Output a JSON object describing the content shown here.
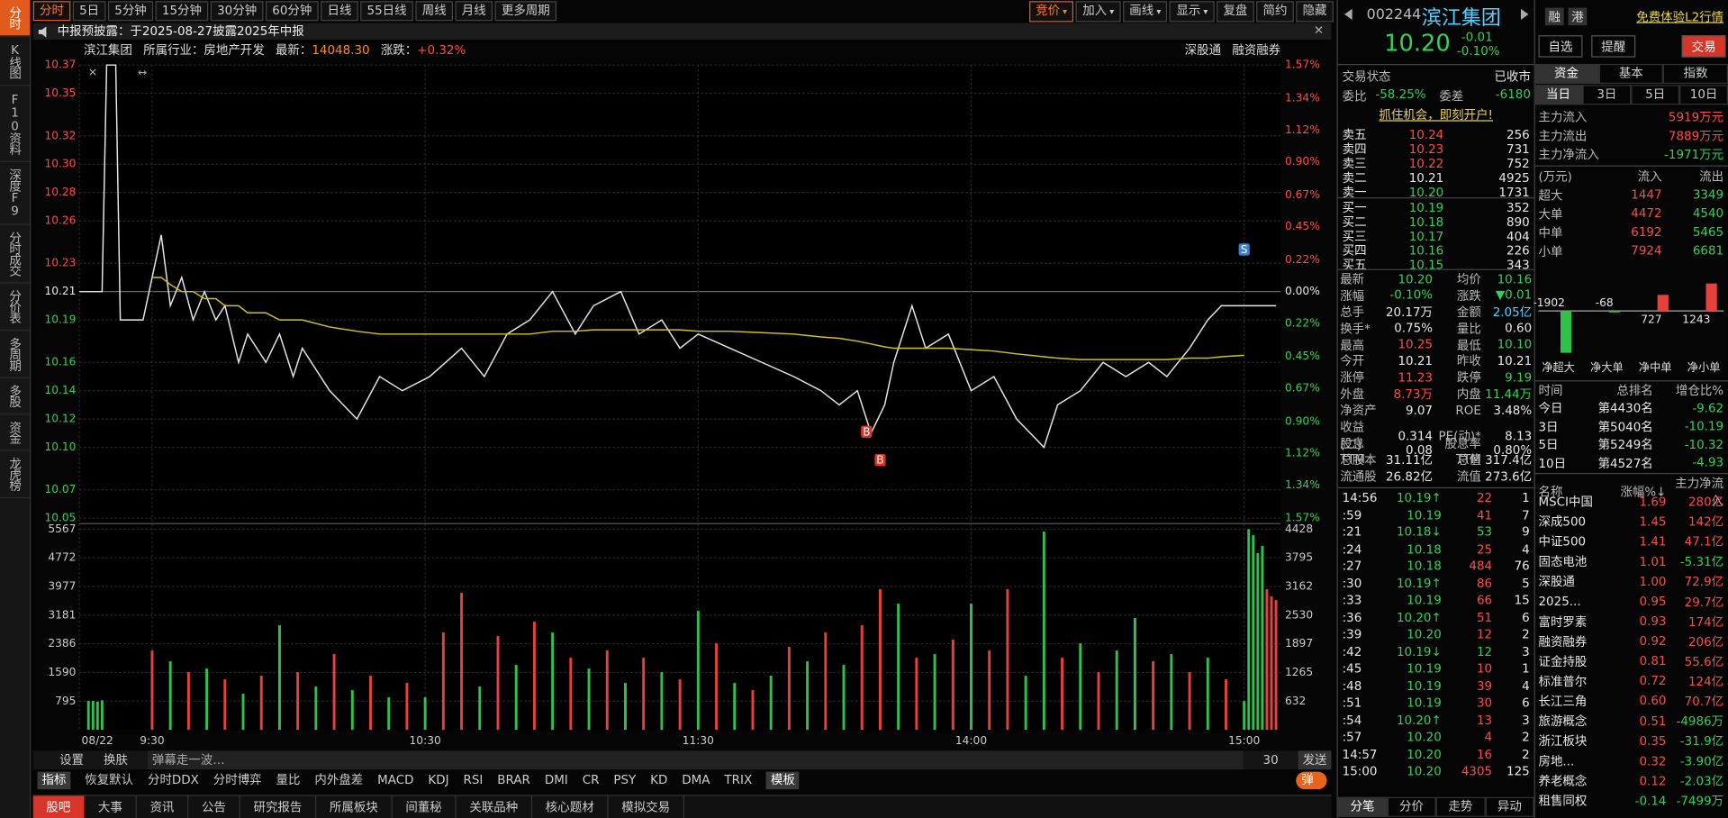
{
  "nav": [
    "分时",
    "K线图",
    "F10资料",
    "深度F9",
    "分时成交",
    "分价表",
    "多周期",
    "多股",
    "资金",
    "龙虎榜"
  ],
  "toolbar": {
    "periods": [
      "分时",
      "5日",
      "5分钟",
      "15分钟",
      "30分钟",
      "60分钟",
      "日线",
      "55日线",
      "周线",
      "月线",
      "更多周期"
    ],
    "tools": [
      "竞价",
      "加入",
      "画线",
      "显示",
      "复盘",
      "简约",
      "隐藏"
    ]
  },
  "notice": "中报预披露：于2025-08-27披露2025年中报",
  "info": {
    "name": "滨江集团",
    "industry": "所属行业：房地产开发",
    "latest_label": "最新：",
    "latest": "14048.30",
    "change_label": "涨跌：",
    "change": "+0.32%",
    "links": [
      "深股通",
      "融资融券"
    ]
  },
  "bottom_bar": {
    "settings": "设置",
    "skin": "换肤",
    "danmu": "弹幕走一波…",
    "count": "30",
    "send": "发送"
  },
  "indicators": {
    "label": "指标",
    "items": [
      "恢复默认",
      "分时DDX",
      "分时博弈",
      "量比",
      "内外盘差",
      "MACD",
      "KDJ",
      "RSI",
      "BRAR",
      "DMI",
      "CR",
      "PSY",
      "KD",
      "DMA",
      "TRIX"
    ],
    "template": "模板",
    "toggle": "弹"
  },
  "bottom_tabs": [
    "股吧",
    "大事",
    "资讯",
    "公告",
    "研究报告",
    "所属板块",
    "间董秘",
    "关联品种",
    "核心题材",
    "模拟交易"
  ],
  "quote": {
    "code": "002244",
    "name": "滨江集团",
    "price": "10.20",
    "change": "-0.01",
    "pct": "-0.10%",
    "status_label": "交易状态",
    "status": "已收市",
    "wb_label": "委比",
    "wb": "-58.25%",
    "wc_label": "委差",
    "wc": "-6180",
    "promo": "抓住机会，即刻开户!"
  },
  "order_book": {
    "asks": [
      [
        "卖五",
        "10.24",
        "256"
      ],
      [
        "卖四",
        "10.23",
        "731"
      ],
      [
        "卖三",
        "10.22",
        "752"
      ],
      [
        "卖二",
        "10.21",
        "4925"
      ],
      [
        "卖一",
        "10.20",
        "1731"
      ]
    ],
    "bids": [
      [
        "买一",
        "10.19",
        "352"
      ],
      [
        "买二",
        "10.18",
        "890"
      ],
      [
        "买三",
        "10.17",
        "404"
      ],
      [
        "买四",
        "10.16",
        "226"
      ],
      [
        "买五",
        "10.15",
        "343"
      ]
    ]
  },
  "stats": [
    [
      "最新",
      "10.20",
      "均价",
      "10.16"
    ],
    [
      "涨幅",
      "-0.10%",
      "涨跌",
      "▼0.01"
    ],
    [
      "总手",
      "20.17万",
      "金额",
      "2.05亿"
    ],
    [
      "换手*",
      "0.75%",
      "量比",
      "0.60"
    ],
    [
      "最高",
      "10.25",
      "最低",
      "10.10"
    ],
    [
      "今开",
      "10.21",
      "昨收",
      "10.21"
    ],
    [
      "涨停",
      "11.23",
      "跌停",
      "9.19"
    ],
    [
      "外盘",
      "8.73万",
      "内盘",
      "11.44万"
    ],
    [
      "净资产",
      "9.07",
      "ROE",
      "3.48%"
    ],
    [
      "收益(二)",
      "0.314",
      "PE(动)*",
      "8.13"
    ],
    [
      "股息TTM",
      "0.08",
      "股息率TTM",
      "0.80%"
    ],
    [
      "总股本",
      "31.11亿",
      "总值",
      "317.4亿"
    ],
    [
      "流通股",
      "26.82亿",
      "流值",
      "273.6亿"
    ]
  ],
  "ticks": [
    [
      "14:56",
      "10.19↑",
      "22",
      "1"
    ],
    [
      ":59",
      "10.19",
      "41",
      "7"
    ],
    [
      ":21",
      "10.18↓",
      "53",
      "9"
    ],
    [
      ":24",
      "10.18",
      "25",
      "4"
    ],
    [
      ":27",
      "10.18",
      "484",
      "76"
    ],
    [
      ":30",
      "10.19↑",
      "86",
      "5"
    ],
    [
      ":33",
      "10.19",
      "66",
      "15"
    ],
    [
      ":36",
      "10.20↑",
      "51",
      "6"
    ],
    [
      ":39",
      "10.20",
      "12",
      "2"
    ],
    [
      ":42",
      "10.19↓",
      "12",
      "3"
    ],
    [
      ":45",
      "10.19",
      "10",
      "1"
    ],
    [
      ":48",
      "10.19",
      "39",
      "4"
    ],
    [
      ":51",
      "10.19",
      "30",
      "6"
    ],
    [
      ":54",
      "10.20↑",
      "13",
      "3"
    ],
    [
      ":57",
      "10.20",
      "4",
      "2"
    ],
    [
      "14:57",
      "10.20",
      "16",
      "2"
    ],
    [
      "15:00",
      "10.20",
      "4305",
      "125"
    ]
  ],
  "ticks_tabs": [
    "分笔",
    "分价",
    "走势",
    "异动"
  ],
  "side": {
    "badges": [
      "融",
      "港"
    ],
    "l2": "免费体验L2行情",
    "buttons": [
      "自选",
      "提醒",
      "交易"
    ],
    "tabs": [
      "资金",
      "基本",
      "指数"
    ],
    "periods": [
      "当日",
      "3日",
      "5日",
      "10日"
    ]
  },
  "main_flow": [
    [
      "主力流入",
      "5919万元"
    ],
    [
      "主力流出",
      "7889万元"
    ],
    [
      "主力净流入",
      "-1971万元"
    ]
  ],
  "flow_table": {
    "header": [
      "(万元)",
      "流入",
      "流出"
    ],
    "rows": [
      [
        "超大",
        "1447",
        "3349"
      ],
      [
        "大单",
        "4472",
        "4540"
      ],
      [
        "中单",
        "6192",
        "5465"
      ],
      [
        "小单",
        "7924",
        "6681"
      ]
    ]
  },
  "rank": {
    "header": [
      "时间",
      "总排名",
      "增仓比%"
    ],
    "rows": [
      [
        "今日",
        "第4430名",
        "-9.62"
      ],
      [
        "3日",
        "第5040名",
        "-10.19"
      ],
      [
        "5日",
        "第5249名",
        "-10.32"
      ],
      [
        "10日",
        "第4527名",
        "-4.93"
      ]
    ]
  },
  "sectors": {
    "header": [
      "名称",
      "涨幅%↓",
      "主力净流入"
    ],
    "rows": [
      [
        "MSCI中国",
        "1.69",
        "280亿"
      ],
      [
        "深成500",
        "1.45",
        "142亿"
      ],
      [
        "中证500",
        "1.41",
        "47.1亿"
      ],
      [
        "固态电池",
        "1.01",
        "-5.31亿"
      ],
      [
        "深股通",
        "1.00",
        "72.9亿"
      ],
      [
        "2025...",
        "0.95",
        "29.7亿"
      ],
      [
        "富时罗素",
        "0.93",
        "174亿"
      ],
      [
        "融资融券",
        "0.92",
        "206亿"
      ],
      [
        "证金持股",
        "0.81",
        "55.6亿"
      ],
      [
        "标准普尔",
        "0.72",
        "124亿"
      ],
      [
        "长江三角",
        "0.60",
        "70.7亿"
      ],
      [
        "旅游概念",
        "0.51",
        "-4986万"
      ],
      [
        "浙江板块",
        "0.35",
        "-31.9亿"
      ],
      [
        "房地...",
        "0.32",
        "-3.90亿"
      ],
      [
        "养老概念",
        "0.12",
        "-2.03亿"
      ],
      [
        "租售同权",
        "-0.14",
        "-7499万"
      ]
    ]
  },
  "chart_data": [
    {
      "type": "line",
      "xlim": [
        -16,
        248
      ],
      "x": [
        -16,
        -11,
        -10,
        -8,
        -7,
        -2,
        0,
        2,
        4,
        6.5,
        9,
        11.5,
        14,
        16,
        19,
        21,
        25,
        28,
        31,
        33,
        39,
        45,
        50,
        55,
        61,
        68,
        73,
        78,
        83,
        88,
        93,
        97,
        103,
        107,
        112,
        116,
        120,
        127,
        134,
        141,
        147,
        151,
        155,
        158,
        161,
        163,
        167,
        170,
        175,
        180,
        185,
        190,
        196,
        199,
        204,
        209,
        214,
        219,
        223,
        228,
        232,
        235,
        240,
        247
      ],
      "series": [
        {
          "color": "#e6e6e6",
          "values": [
            10.21,
            10.21,
            10.37,
            10.37,
            10.19,
            10.19,
            10.22,
            10.25,
            10.2,
            10.22,
            10.19,
            10.21,
            10.19,
            10.2,
            10.16,
            10.18,
            10.16,
            10.18,
            10.15,
            10.17,
            10.14,
            10.12,
            10.15,
            10.14,
            10.15,
            10.17,
            10.15,
            10.18,
            10.19,
            10.21,
            10.18,
            10.2,
            10.21,
            10.18,
            10.19,
            10.17,
            10.18,
            10.17,
            10.16,
            10.15,
            10.14,
            10.13,
            10.14,
            10.11,
            10.13,
            10.16,
            10.2,
            10.17,
            10.18,
            10.14,
            10.15,
            10.12,
            10.1,
            10.13,
            10.14,
            10.16,
            10.15,
            10.16,
            10.15,
            10.17,
            10.19,
            10.2,
            10.2,
            10.2
          ]
        },
        {
          "color": "#d4c21a",
          "values": [
            null,
            null,
            null,
            null,
            null,
            null,
            10.22,
            10.22,
            10.215,
            10.21,
            10.21,
            10.205,
            10.205,
            10.2,
            10.2,
            10.195,
            10.195,
            10.19,
            10.19,
            10.19,
            10.185,
            10.182,
            10.18,
            10.18,
            10.18,
            10.18,
            10.18,
            10.18,
            10.18,
            10.182,
            10.182,
            10.183,
            10.183,
            10.183,
            10.183,
            10.183,
            10.182,
            10.182,
            10.181,
            10.18,
            10.178,
            10.177,
            10.175,
            10.173,
            10.171,
            10.17,
            10.17,
            10.17,
            10.17,
            10.169,
            10.168,
            10.166,
            10.164,
            10.163,
            10.162,
            10.162,
            10.162,
            10.162,
            10.162,
            10.163,
            10.163,
            10.164,
            10.165,
            null
          ]
        }
      ],
      "ylim": [
        10.05,
        10.37
      ],
      "yticks": [
        10.37,
        10.35,
        10.32,
        {
          "value": 10.3,
          "label": "10.30"
        },
        10.28,
        10.26,
        10.23,
        10.21,
        10.19,
        10.16,
        10.14,
        10.12,
        {
          "value": 10.1,
          "label": "10.10"
        },
        10.07,
        10.05
      ],
      "y2lim": [
        -1.57,
        1.57
      ],
      "y2ticks": [
        {
          "value": 1.57,
          "label": "1.57%"
        },
        {
          "value": 1.34,
          "label": "1.34%"
        },
        {
          "value": 1.12,
          "label": "1.12%"
        },
        {
          "value": 0.9,
          "label": "0.90%"
        },
        {
          "value": 0.67,
          "label": "0.67%"
        },
        {
          "value": 0.45,
          "label": "0.45%"
        },
        {
          "value": 0.22,
          "label": "0.22%"
        },
        {
          "value": 0,
          "label": "0.00%"
        },
        {
          "value": -0.22,
          "label": "0.22%"
        },
        {
          "value": -0.45,
          "label": "0.45%"
        },
        {
          "value": -0.67,
          "label": "0.67%"
        },
        {
          "value": -0.9,
          "label": "0.90%"
        },
        {
          "value": -1.12,
          "label": "1.12%"
        },
        {
          "value": -1.34,
          "label": "1.34%"
        },
        {
          "value": -1.57,
          "label": "1.57%"
        }
      ],
      "grid": true,
      "annotations": [
        {
          "label": "B",
          "x": 157,
          "y": 10.12
        },
        {
          "label": "B",
          "x": 160,
          "y": 10.1
        },
        {
          "label": "S",
          "x": 240,
          "y": 10.23
        }
      ]
    },
    {
      "type": "bar",
      "xlim": [
        -16,
        248
      ],
      "x": [
        -14,
        -13,
        -12,
        -11,
        0,
        4,
        8,
        12,
        16,
        20,
        24,
        28,
        32,
        36,
        40,
        44,
        48,
        52,
        56,
        60,
        64,
        68,
        72,
        76,
        80,
        84,
        88,
        92,
        96,
        100,
        104,
        108,
        112,
        116,
        120,
        124,
        128,
        132,
        136,
        140,
        144,
        148,
        152,
        156,
        160,
        164,
        168,
        172,
        176,
        180,
        184,
        188,
        192,
        196,
        200,
        204,
        208,
        212,
        216,
        220,
        224,
        228,
        232,
        236,
        240,
        241,
        242,
        243,
        244,
        245,
        246,
        247
      ],
      "values": [
        800,
        800,
        780,
        820,
        2200,
        1900,
        1600,
        1700,
        1400,
        1000,
        1500,
        2900,
        1600,
        1200,
        2100,
        1100,
        1500,
        900,
        1300,
        900,
        2700,
        3800,
        1200,
        2600,
        1800,
        3000,
        2700,
        2000,
        1700,
        2200,
        1300,
        2000,
        1600,
        1400,
        3300,
        2400,
        1300,
        1100,
        1500,
        2300,
        1900,
        2700,
        1800,
        2900,
        3900,
        3500,
        2000,
        2100,
        2500,
        3500,
        2200,
        3900,
        1500,
        5500,
        2000,
        2400,
        1600,
        2200,
        3100,
        1900,
        2100,
        1600,
        2000,
        1400,
        800,
        5567,
        5400,
        4900,
        5100,
        3900,
        3700,
        3600
      ],
      "colors": [
        "#2fc24a",
        "#2fc24a",
        "#2fc24a",
        "#2fc24a",
        "#e8413c",
        "#2fc24a",
        "#e8413c",
        "#2fc24a",
        "#e8413c",
        "#2fc24a",
        "#e8413c",
        "#2fc24a",
        "#e8413c",
        "#2fc24a",
        "#e8413c",
        "#2fc24a",
        "#e8413c",
        "#2fc24a",
        "#e8413c",
        "#2fc24a",
        "#e8413c",
        "#e8413c",
        "#2fc24a",
        "#e8413c",
        "#2fc24a",
        "#e8413c",
        "#2fc24a",
        "#e8413c",
        "#2fc24a",
        "#e8413c",
        "#2fc24a",
        "#e8413c",
        "#2fc24a",
        "#e8413c",
        "#2fc24a",
        "#e8413c",
        "#2fc24a",
        "#e8413c",
        "#2fc24a",
        "#e8413c",
        "#2fc24a",
        "#e8413c",
        "#2fc24a",
        "#e8413c",
        "#e8413c",
        "#2fc24a",
        "#e8413c",
        "#2fc24a",
        "#e8413c",
        "#2fc24a",
        "#e8413c",
        "#e8413c",
        "#2fc24a",
        "#2fc24a",
        "#e8413c",
        "#2fc24a",
        "#e8413c",
        "#2fc24a",
        "#2fc24a",
        "#e8413c",
        "#2fc24a",
        "#e8413c",
        "#2fc24a",
        "#e8413c",
        "#2fc24a",
        "#2fc24a",
        "#2fc24a",
        "#2fc24a",
        "#2fc24a",
        "#e8413c",
        "#e8413c",
        "#e8413c"
      ],
      "ylim": [
        0,
        5567
      ],
      "yticks": [
        795,
        1590,
        2386,
        3181,
        3977,
        4772,
        5567
      ],
      "y2lim": [
        0,
        4428
      ],
      "y2ticks": [
        632,
        1265,
        1897,
        2530,
        3162,
        3795,
        4428
      ],
      "xticks": [
        {
          "value": -16,
          "label": "08/22"
        },
        {
          "value": 0,
          "label": "9:30"
        },
        {
          "value": 60,
          "label": "10:30"
        },
        {
          "value": 120,
          "label": "11:30"
        },
        {
          "value": 180,
          "label": "14:00"
        },
        {
          "value": 240,
          "label": "15:00"
        }
      ],
      "grid": true
    },
    {
      "type": "bar",
      "categories": [
        "净超大",
        "净大单",
        "净中单",
        "净小单"
      ],
      "values": [
        -1902,
        -68,
        727,
        1243
      ],
      "colors": [
        "#2fc24a",
        "#2fc24a",
        "#e8413c",
        "#e8413c"
      ],
      "ylim": [
        -2000,
        1400
      ]
    }
  ]
}
